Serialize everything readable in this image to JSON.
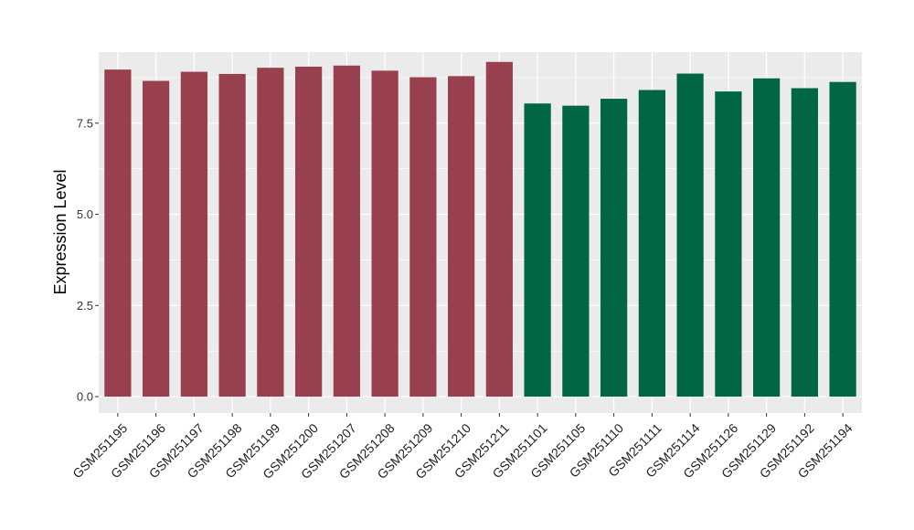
{
  "chart_data": {
    "type": "bar",
    "ylabel": "Expression Level",
    "xlabel": "",
    "ylim": [
      -0.45,
      9.45
    ],
    "yticks": [
      0.0,
      2.5,
      5.0,
      7.5
    ],
    "ytick_labels": [
      "0.0",
      "2.5",
      "5.0",
      "7.5"
    ],
    "grid": true,
    "categories": [
      "GSM251195",
      "GSM251196",
      "GSM251197",
      "GSM251198",
      "GSM251199",
      "GSM251200",
      "GSM251207",
      "GSM251208",
      "GSM251209",
      "GSM251210",
      "GSM251211",
      "GSM251101",
      "GSM251105",
      "GSM251110",
      "GSM251111",
      "GSM251114",
      "GSM251126",
      "GSM251129",
      "GSM251192",
      "GSM251194"
    ],
    "values": [
      8.97,
      8.66,
      8.91,
      8.85,
      9.02,
      9.05,
      9.08,
      8.94,
      8.76,
      8.79,
      9.18,
      8.04,
      7.98,
      8.17,
      8.41,
      8.86,
      8.37,
      8.73,
      8.46,
      8.63
    ],
    "colors": [
      "#99404f",
      "#99404f",
      "#99404f",
      "#99404f",
      "#99404f",
      "#99404f",
      "#99404f",
      "#99404f",
      "#99404f",
      "#99404f",
      "#99404f",
      "#006644",
      "#006644",
      "#006644",
      "#006644",
      "#006644",
      "#006644",
      "#006644",
      "#006644",
      "#006644"
    ]
  }
}
